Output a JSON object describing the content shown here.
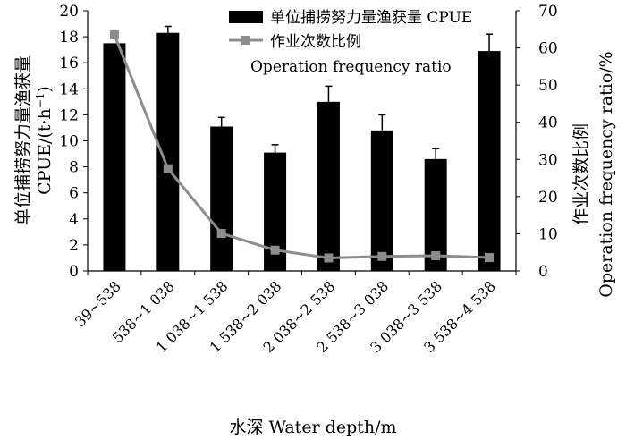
{
  "chart_data": {
    "type": "bar",
    "categories": [
      "39~538",
      "538~1 038",
      "1 038~1 538",
      "1 538~2 038",
      "2 038~2 538",
      "2 538~3 038",
      "3 038~3 538",
      "3 538~4 538"
    ],
    "series": [
      {
        "name": "单位捕捞努力量渔获量 CPUE",
        "type": "bar",
        "axis": "left",
        "values": [
          17.5,
          18.3,
          11.1,
          9.1,
          13.0,
          10.8,
          8.6,
          16.9
        ],
        "errors": [
          0.0,
          0.5,
          0.7,
          0.6,
          1.2,
          1.2,
          0.8,
          1.3
        ]
      },
      {
        "name": "作业次数比例",
        "name_en": "Operation frequency ratio",
        "type": "line",
        "axis": "right",
        "values": [
          63.5,
          27.5,
          10.1,
          5.6,
          3.5,
          3.9,
          4.1,
          3.6
        ]
      }
    ],
    "xlabel": "水深 Water depth/m",
    "ylabel_left": "单位捕捞努力量渔获量",
    "ylabel_left_unit": "CPUE/(t·h",
    "ylabel_left_exp": "−1",
    "ylabel_right_cn": "作业次数比例",
    "ylabel_right_en": "Operation frequency ratio/%",
    "ylim_left": [
      0,
      20
    ],
    "yticks_left": [
      0,
      2,
      4,
      6,
      8,
      10,
      12,
      14,
      16,
      18,
      20
    ],
    "ylim_right": [
      0,
      70
    ],
    "yticks_right": [
      0,
      10,
      20,
      30,
      40,
      50,
      60,
      70
    ],
    "grid": false,
    "legend_position": "top-right",
    "colors": {
      "bar": "#000000",
      "line": "#8c8c8c",
      "marker": "#8c8c8c"
    }
  }
}
